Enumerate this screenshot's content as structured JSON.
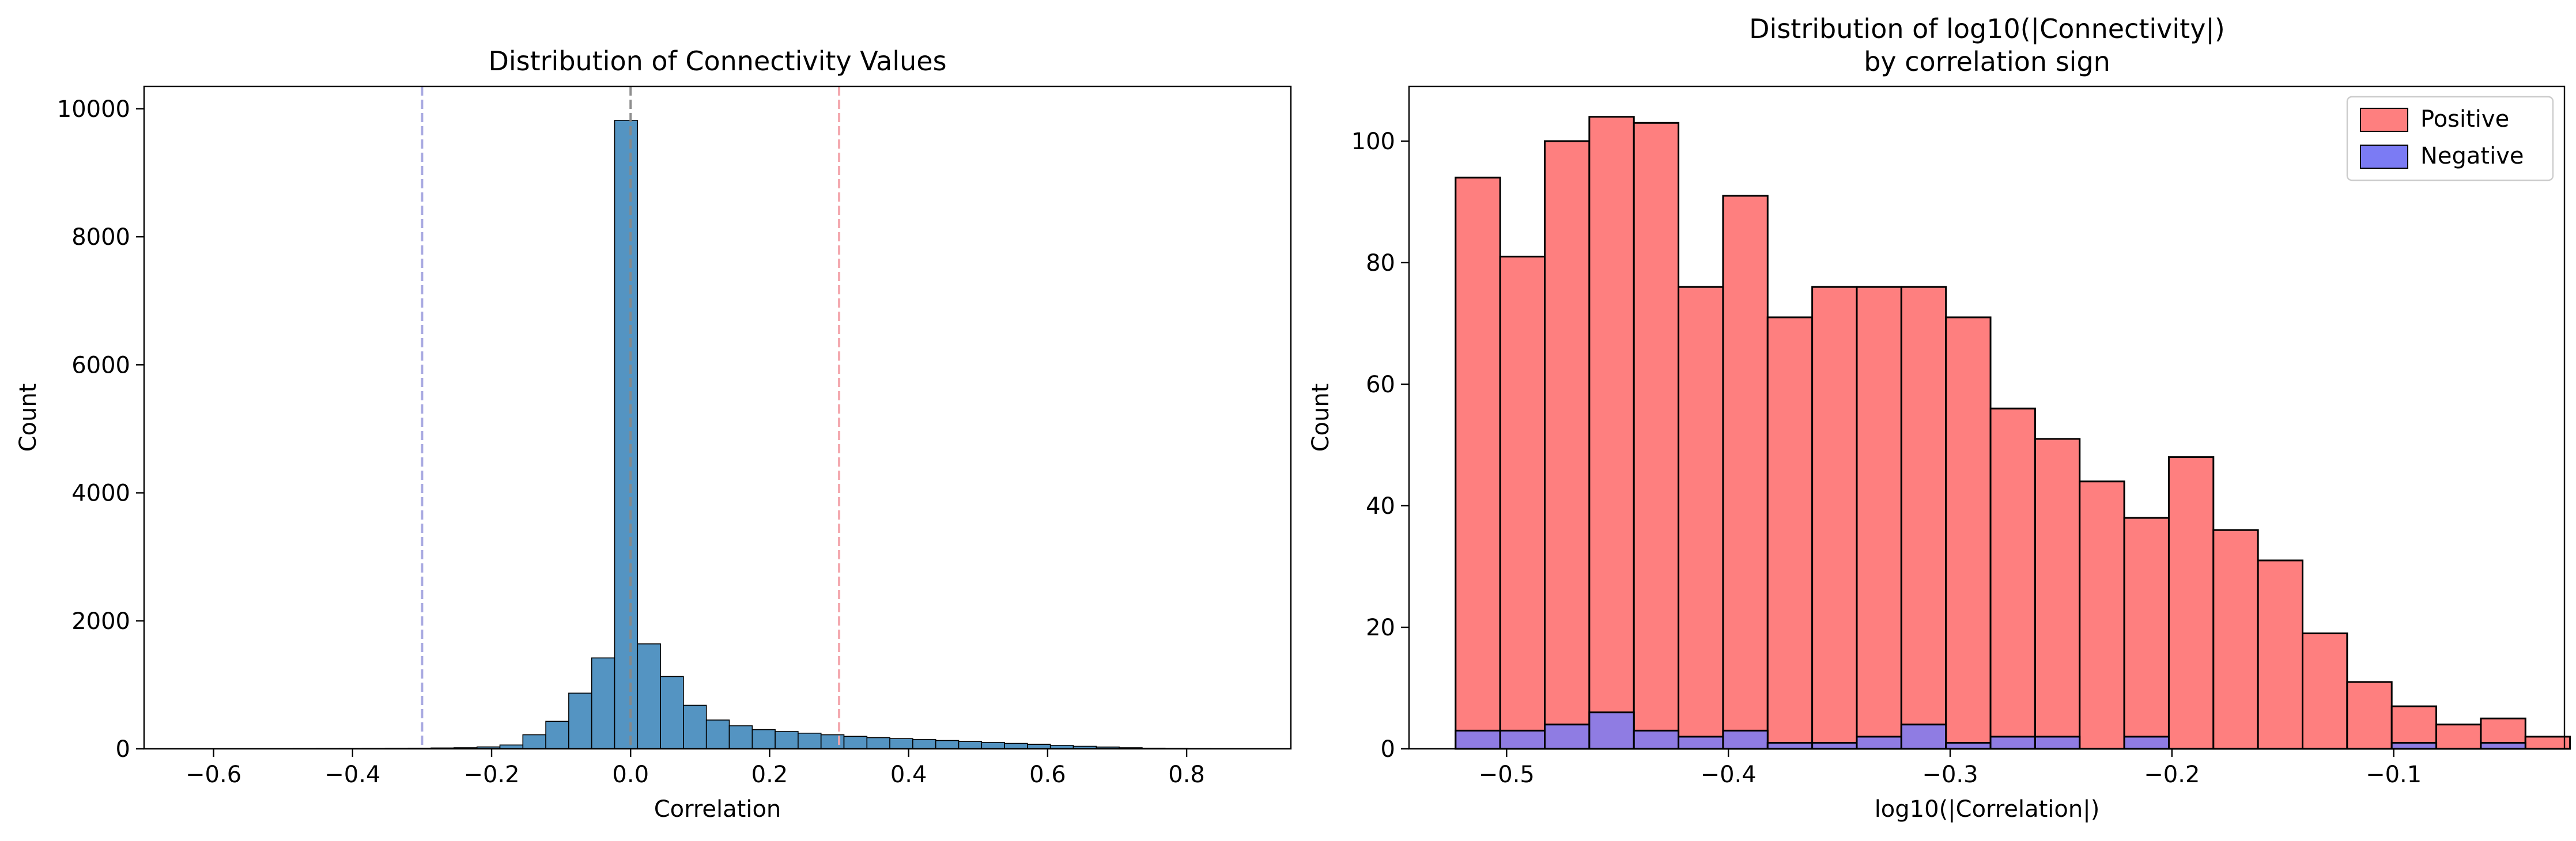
{
  "chart_data": [
    {
      "type": "bar",
      "title": "Distribution of Connectivity Values",
      "xlabel": "Correlation",
      "ylabel": "Count",
      "xlim": [
        -0.7,
        0.95
      ],
      "ylim": [
        0,
        10350
      ],
      "xticks": [
        -0.6,
        -0.4,
        -0.2,
        0.0,
        0.2,
        0.4,
        0.6,
        0.8
      ],
      "xtick_labels": [
        "−0.6",
        "−0.4",
        "−0.2",
        "0.0",
        "0.2",
        "0.4",
        "0.6",
        "0.8"
      ],
      "yticks": [
        0,
        2000,
        4000,
        6000,
        8000,
        10000
      ],
      "ytick_labels": [
        "0",
        "2000",
        "4000",
        "6000",
        "8000",
        "10000"
      ],
      "grid": false,
      "bar_color": "#4b8ebf",
      "bins": {
        "edges": [
          -0.65,
          -0.617,
          -0.584,
          -0.551,
          -0.518,
          -0.485,
          -0.452,
          -0.419,
          -0.386,
          -0.353,
          -0.32,
          -0.287,
          -0.254,
          -0.221,
          -0.188,
          -0.155,
          -0.122,
          -0.089,
          -0.056,
          -0.023,
          0.01,
          0.043,
          0.076,
          0.109,
          0.142,
          0.175,
          0.208,
          0.241,
          0.274,
          0.307,
          0.34,
          0.373,
          0.406,
          0.439,
          0.472,
          0.505,
          0.538,
          0.571,
          0.604,
          0.637,
          0.67,
          0.703,
          0.736,
          0.769,
          0.802,
          0.835,
          0.868,
          0.901
        ],
        "counts": [
          1,
          1,
          1,
          1,
          2,
          3,
          4,
          5,
          6,
          8,
          10,
          14,
          18,
          30,
          60,
          220,
          430,
          870,
          1420,
          9820,
          1640,
          1130,
          680,
          450,
          360,
          300,
          270,
          245,
          220,
          195,
          175,
          160,
          145,
          130,
          115,
          100,
          85,
          70,
          55,
          40,
          28,
          18,
          10,
          6,
          3,
          2,
          1
        ]
      },
      "reference_lines": [
        {
          "x": -0.3,
          "color": "#a5a6e0",
          "style": "dashed"
        },
        {
          "x": 0.0,
          "color": "#888888",
          "style": "dashed"
        },
        {
          "x": 0.3,
          "color": "#f4a4aa",
          "style": "dashed"
        }
      ]
    },
    {
      "type": "bar",
      "title": "Distribution of log10(|Connectivity|)",
      "subtitle": "by correlation sign",
      "xlabel": "log10(|Correlation|)",
      "ylabel": "Count",
      "xlim": [
        -0.544,
        -0.023
      ],
      "ylim": [
        0,
        109
      ],
      "xticks": [
        -0.5,
        -0.4,
        -0.3,
        -0.2,
        -0.1
      ],
      "xtick_labels": [
        "−0.5",
        "−0.4",
        "−0.3",
        "−0.2",
        "−0.1"
      ],
      "yticks": [
        0,
        20,
        40,
        60,
        80,
        100
      ],
      "ytick_labels": [
        "0",
        "20",
        "40",
        "60",
        "80",
        "100"
      ],
      "grid": false,
      "legend": "top-right",
      "bin_start": -0.523,
      "bin_width": 0.0201,
      "series": [
        {
          "name": "Positive",
          "color": "#fe7f7f",
          "values": [
            94,
            81,
            100,
            104,
            103,
            76,
            91,
            71,
            76,
            76,
            76,
            71,
            56,
            51,
            44,
            38,
            48,
            36,
            31,
            19,
            11,
            7,
            4,
            5,
            2
          ]
        },
        {
          "name": "Negative",
          "color": "#7b7bf4",
          "values": [
            3,
            3,
            4,
            6,
            3,
            2,
            3,
            1,
            1,
            2,
            4,
            1,
            2,
            2,
            0,
            2,
            0,
            0,
            0,
            0,
            0,
            1,
            0,
            1,
            0
          ]
        }
      ]
    }
  ]
}
